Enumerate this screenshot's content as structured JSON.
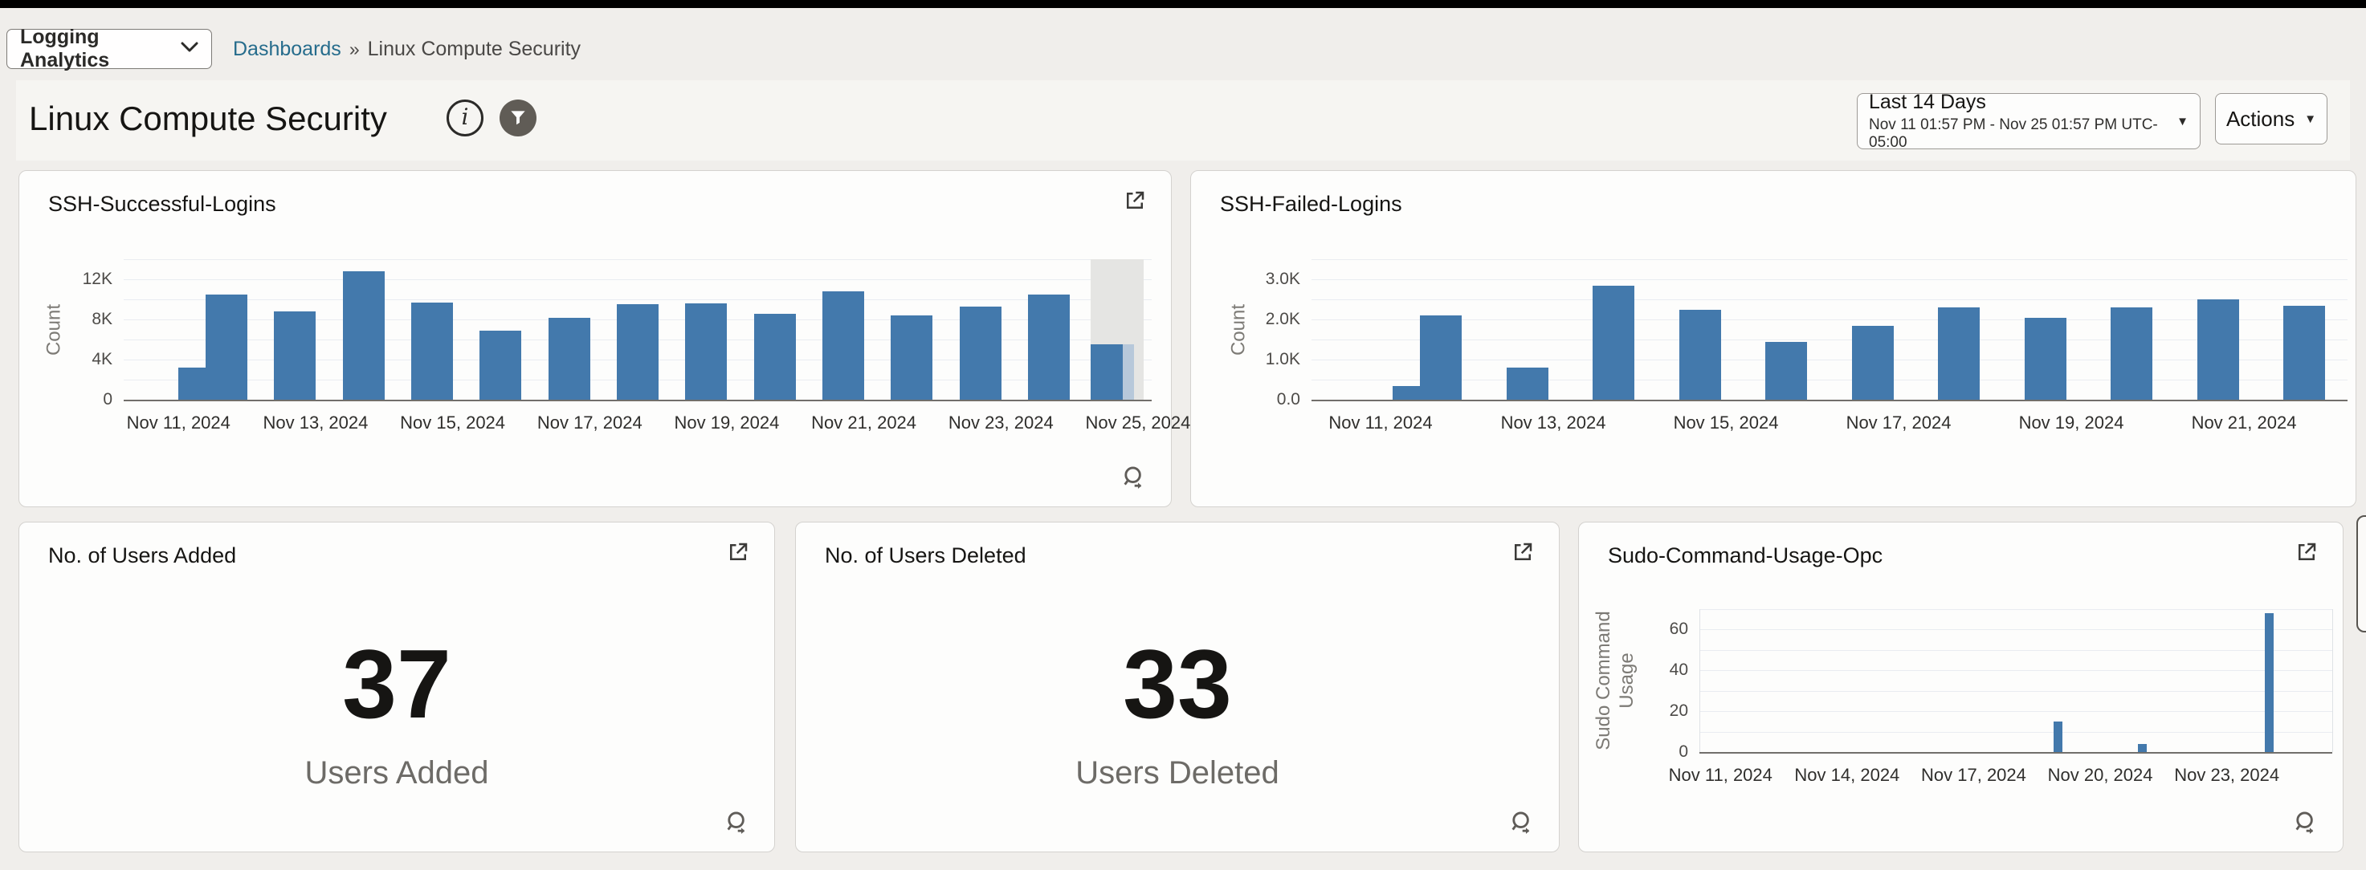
{
  "header": {
    "app_selector_label": "Logging Analytics",
    "breadcrumb": {
      "link": "Dashboards",
      "separator": "»",
      "current": "Linux Compute Security"
    }
  },
  "titlebar": {
    "title": "Linux Compute Security",
    "info_glyph": "i"
  },
  "controls": {
    "time_range": {
      "label": "Last 14 Days",
      "range": "Nov 11 01:57 PM - Nov 25 01:57 PM UTC-05:00",
      "caret": "▼"
    },
    "actions": {
      "label": "Actions",
      "caret": "▼"
    }
  },
  "kpis": {
    "users_added": {
      "title": "No. of Users Added",
      "value": "37",
      "label": "Users Added"
    },
    "users_deleted": {
      "title": "No. of Users Deleted",
      "value": "33",
      "label": "Users Deleted"
    }
  },
  "chart_data": [
    {
      "id": "ssh-success",
      "type": "bar",
      "title": "SSH-Successful-Logins",
      "ylabel": "Count",
      "ylim": [
        0,
        14000
      ],
      "grid_step": 2000,
      "grid": true,
      "legend": "none",
      "bar_color": "#4379ac",
      "yticks": [
        {
          "value": 0,
          "label": "0"
        },
        {
          "value": 4000,
          "label": "4K"
        },
        {
          "value": 8000,
          "label": "8K"
        },
        {
          "value": 12000,
          "label": "12K"
        }
      ],
      "categories": [
        "Nov 11, 2024",
        "Nov 12, 2024",
        "Nov 13, 2024",
        "Nov 14, 2024",
        "Nov 15, 2024",
        "Nov 16, 2024",
        "Nov 17, 2024",
        "Nov 18, 2024",
        "Nov 19, 2024",
        "Nov 20, 2024",
        "Nov 21, 2024",
        "Nov 22, 2024",
        "Nov 23, 2024",
        "Nov 24, 2024",
        "Nov 25, 2024"
      ],
      "values": [
        3200,
        10500,
        8800,
        12800,
        9700,
        6900,
        8200,
        9500,
        9600,
        8600,
        10800,
        8400,
        9300,
        10500,
        5500
      ],
      "x_label_indices": [
        0,
        2,
        4,
        6,
        8,
        10,
        12,
        14
      ],
      "current_period": {
        "index": 14,
        "band_color": "#e5e5e3",
        "partial_color": "#b7c8da"
      }
    },
    {
      "id": "ssh-failed",
      "type": "bar",
      "title": "SSH-Failed-Logins",
      "ylabel": "Count",
      "ylim": [
        0,
        3500
      ],
      "grid_step": 500,
      "grid": true,
      "legend": "none",
      "bar_color": "#4379ac",
      "yticks": [
        {
          "value": 0,
          "label": "0.0"
        },
        {
          "value": 1000,
          "label": "1.0K"
        },
        {
          "value": 2000,
          "label": "2.0K"
        },
        {
          "value": 3000,
          "label": "3.0K"
        }
      ],
      "categories": [
        "Nov 11, 2024",
        "Nov 12, 2024",
        "Nov 13, 2024",
        "Nov 14, 2024",
        "Nov 15, 2024",
        "Nov 16, 2024",
        "Nov 17, 2024",
        "Nov 18, 2024",
        "Nov 19, 2024",
        "Nov 20, 2024",
        "Nov 21, 2024",
        "Nov 22, 2024"
      ],
      "values": [
        350,
        2100,
        800,
        2850,
        2250,
        1450,
        1850,
        2300,
        2050,
        2300,
        2500,
        2350
      ],
      "x_label_indices": [
        0,
        2,
        4,
        6,
        8,
        10
      ]
    },
    {
      "id": "sudo-usage",
      "type": "bar",
      "title": "Sudo-Command-Usage-Opc",
      "ylabel": "Sudo Command Usage",
      "ylim": [
        0,
        70
      ],
      "grid_step": 10,
      "grid": true,
      "legend": "none",
      "bar_color": "#4379ac",
      "yticks": [
        {
          "value": 0,
          "label": "0"
        },
        {
          "value": 20,
          "label": "20"
        },
        {
          "value": 40,
          "label": "40"
        },
        {
          "value": 60,
          "label": "60"
        }
      ],
      "categories": [
        "Nov 11, 2024",
        "Nov 12, 2024",
        "Nov 13, 2024",
        "Nov 14, 2024",
        "Nov 15, 2024",
        "Nov 16, 2024",
        "Nov 17, 2024",
        "Nov 18, 2024",
        "Nov 19, 2024",
        "Nov 20, 2024",
        "Nov 21, 2024",
        "Nov 22, 2024",
        "Nov 23, 2024",
        "Nov 24, 2024",
        "Nov 25, 2024"
      ],
      "values": [
        0,
        0,
        0,
        0,
        0,
        0,
        0,
        0,
        15,
        0,
        4,
        0,
        0,
        68,
        0
      ],
      "x_label_indices": [
        0,
        3,
        6,
        9,
        12
      ]
    }
  ]
}
